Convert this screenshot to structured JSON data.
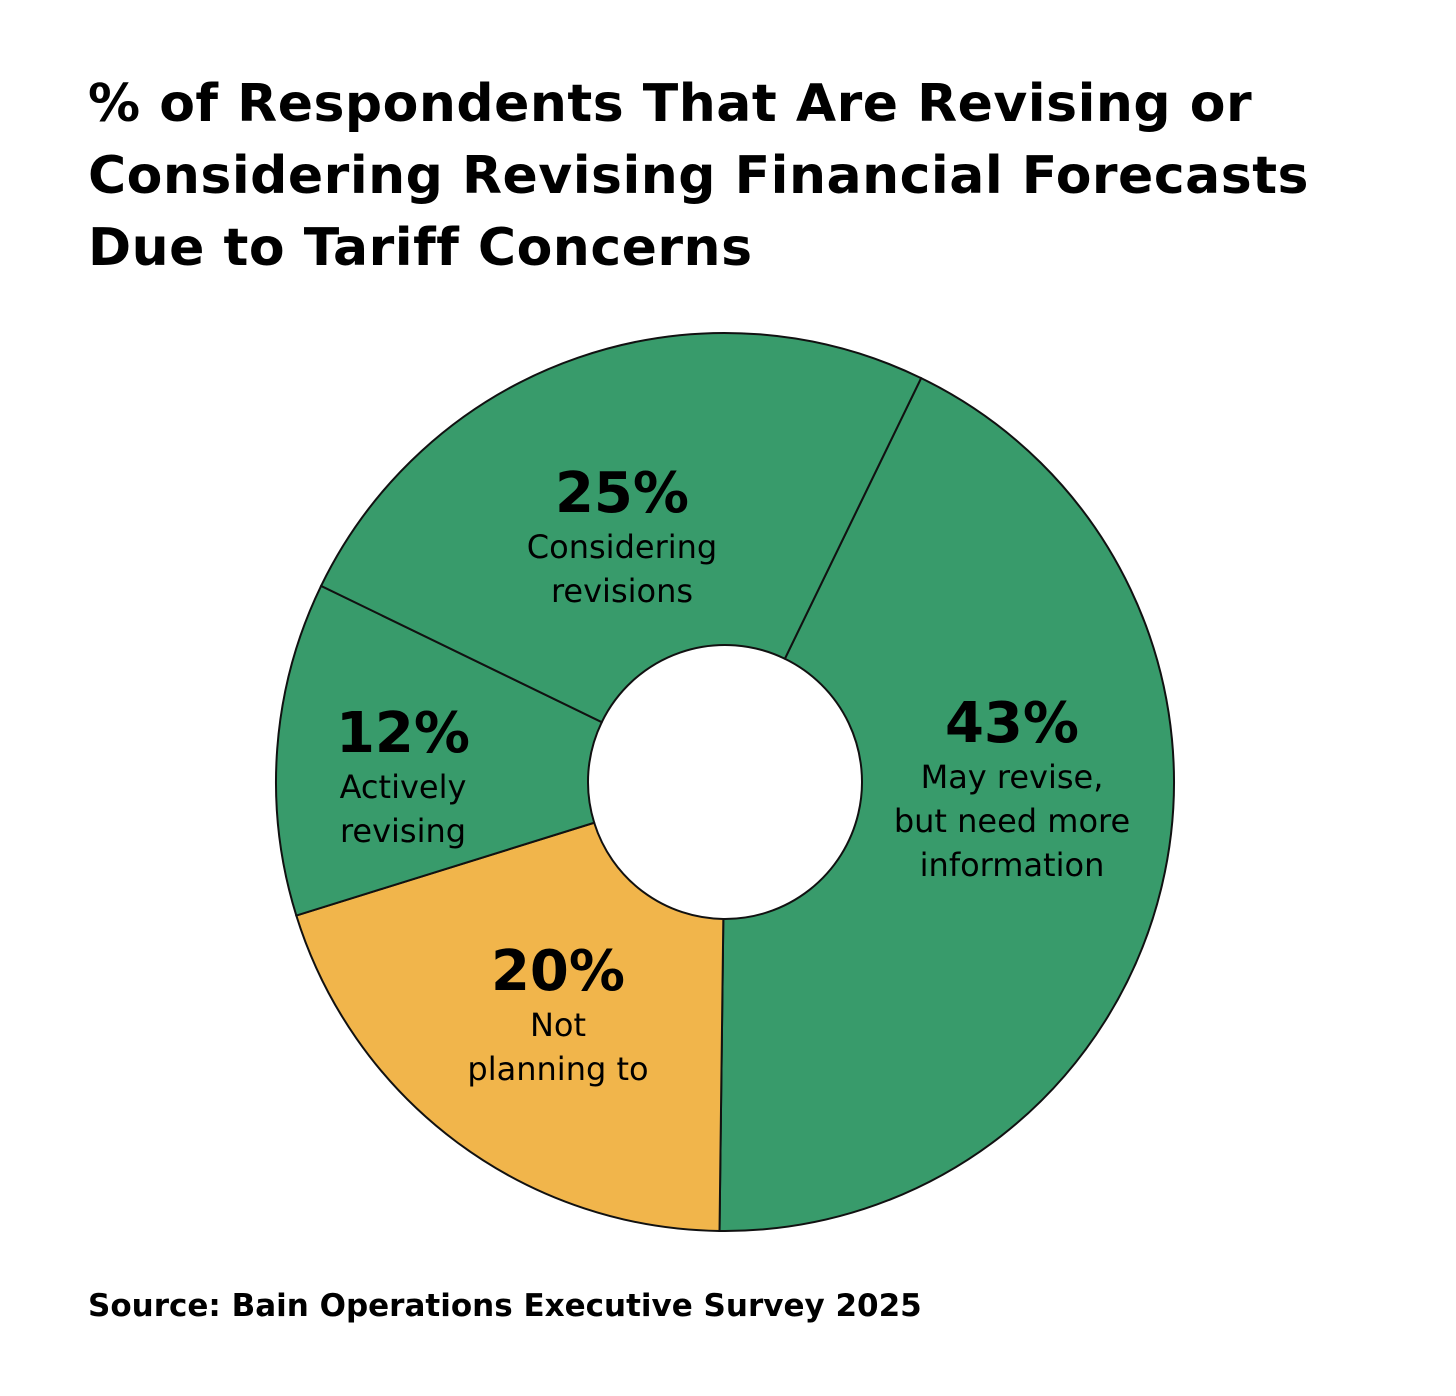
{
  "chart_data": {
    "type": "pie",
    "variant": "donut",
    "title": "% of Respondents That Are Revising or Considering Revising Financial Forecasts Due to Tariff Concerns",
    "slices": [
      {
        "value": 43,
        "pct_label": "43%",
        "label_lines": [
          "May revise,",
          "but need more",
          "information"
        ],
        "color": "#389b6b"
      },
      {
        "value": 20,
        "pct_label": "20%",
        "label_lines": [
          "Not",
          "planning to"
        ],
        "color": "#f1b54b"
      },
      {
        "value": 12,
        "pct_label": "12%",
        "label_lines": [
          "Actively",
          "revising"
        ],
        "color": "#389b6b"
      },
      {
        "value": 25,
        "pct_label": "25%",
        "label_lines": [
          "Considering",
          "revisions"
        ],
        "color": "#389b6b"
      }
    ],
    "source": "Source: Bain Operations Executive Survey 2025"
  }
}
